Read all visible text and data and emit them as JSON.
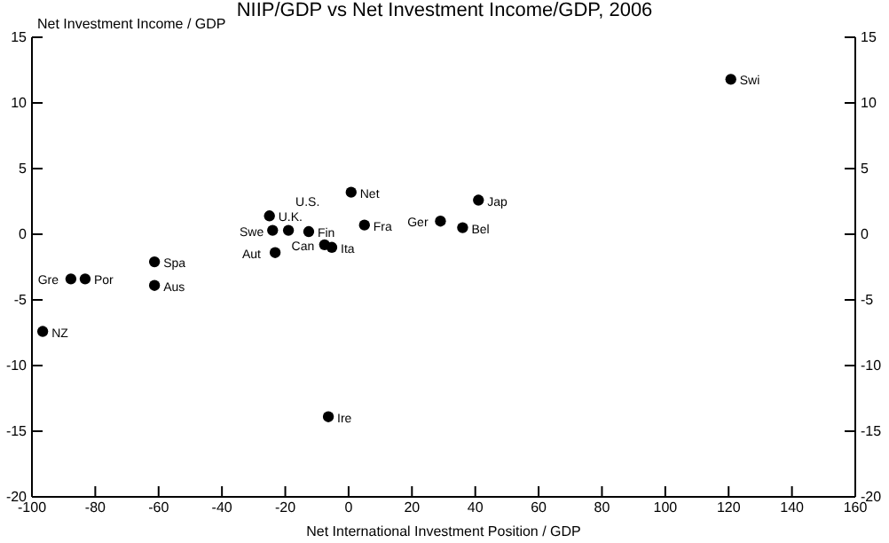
{
  "chart_data": {
    "type": "scatter",
    "title": "NIIP/GDP vs Net Investment Income/GDP, 2006",
    "xlabel": "Net International Investment Position / GDP",
    "ylabel": "Net Investment Income / GDP",
    "x": [
      120.7,
      0.8,
      41,
      -25,
      5,
      29,
      36,
      -24,
      -19,
      -12.6,
      -7.6,
      -5.3,
      -23.2,
      -61.3,
      -87.7,
      -83.2,
      -61.3,
      -96.6,
      -6.4
    ],
    "values": [
      11.8,
      3.2,
      2.6,
      1.4,
      0.7,
      1.0,
      0.5,
      0.3,
      0.3,
      0.2,
      -0.8,
      -1.0,
      -1.4,
      -2.1,
      -3.4,
      -3.4,
      -3.9,
      -7.4,
      -13.9
    ],
    "color": "#000000",
    "marker": "circle",
    "annotations": [
      {
        "text": "Swi",
        "x": 120.7,
        "y": 11.8
      },
      {
        "text": "Net",
        "x": 0.8,
        "y": 3.2
      },
      {
        "text": "Jap",
        "x": 41,
        "y": 2.6
      },
      {
        "text": "U.K.",
        "x": -25,
        "y": 1.4
      },
      {
        "text": "Fra",
        "x": 5,
        "y": 0.7
      },
      {
        "text": "Ger",
        "x": 29,
        "y": 1.0
      },
      {
        "text": "Bel",
        "x": 36,
        "y": 0.5
      },
      {
        "text": "Swe",
        "x": -24,
        "y": 0.3
      },
      {
        "text": "U.S.",
        "x": -19,
        "y": 0.3
      },
      {
        "text": "Fin",
        "x": -12.6,
        "y": 0.2
      },
      {
        "text": "Can",
        "x": -7.6,
        "y": -0.8
      },
      {
        "text": "Ita",
        "x": -5.3,
        "y": -1.0
      },
      {
        "text": "Aut",
        "x": -23.2,
        "y": -1.4
      },
      {
        "text": "Spa",
        "x": -61.3,
        "y": -2.1
      },
      {
        "text": "Gre",
        "x": -87.7,
        "y": -3.4
      },
      {
        "text": "Por",
        "x": -83.2,
        "y": -3.4
      },
      {
        "text": "Aus",
        "x": -61.3,
        "y": -3.9
      },
      {
        "text": "NZ",
        "x": -96.6,
        "y": -7.4
      },
      {
        "text": "Ire",
        "x": -6.4,
        "y": -13.9
      }
    ],
    "xlim": [
      -100,
      160
    ],
    "xticks": [
      -100,
      -80,
      -60,
      -40,
      -20,
      0,
      20,
      40,
      60,
      80,
      100,
      120,
      140,
      160
    ],
    "ylim": [
      -20,
      15
    ],
    "yticks": [
      -20,
      -15,
      -10,
      -5,
      0,
      5,
      10,
      15
    ],
    "y2lim": [
      -20,
      15
    ],
    "y2ticks": [
      -20,
      -15,
      -10,
      -5,
      0,
      5,
      10,
      15
    ],
    "grid": false
  }
}
